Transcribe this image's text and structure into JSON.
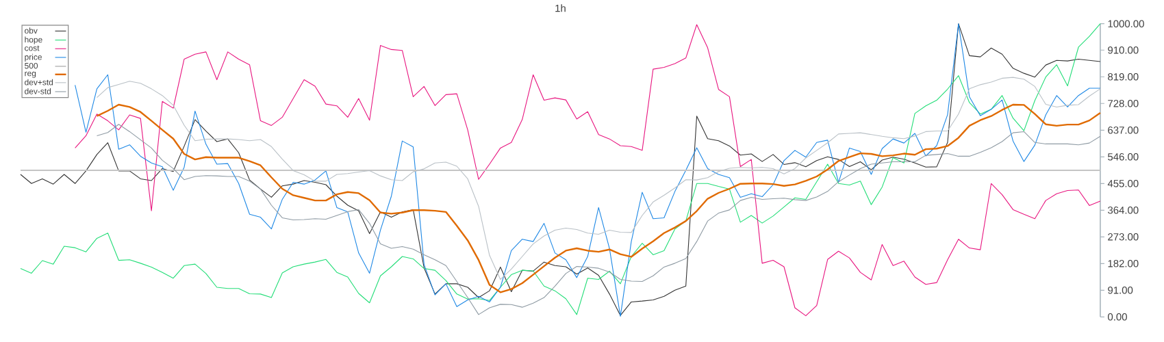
{
  "chart_data": {
    "type": "line",
    "title": "1h",
    "categories": [
      null,
      null,
      null,
      null,
      null,
      null,
      null,
      null,
      null,
      null,
      null,
      null,
      null,
      null,
      null,
      null,
      null,
      null,
      null,
      null,
      null,
      null,
      null,
      null,
      null,
      null,
      null,
      null,
      null,
      null,
      null,
      null,
      null,
      null,
      null,
      null,
      null,
      null,
      null,
      null,
      null,
      null,
      null,
      null,
      null,
      null,
      null,
      null,
      null,
      null,
      null,
      null,
      null,
      null,
      null,
      null,
      null,
      null,
      null,
      null,
      null,
      null,
      null,
      null,
      null,
      null,
      null,
      null,
      null,
      null,
      null,
      null,
      null,
      null,
      null,
      null,
      null,
      null,
      null,
      null,
      null,
      null,
      null,
      null,
      null,
      null,
      null,
      null,
      null,
      null,
      null,
      null,
      null,
      null,
      null,
      null,
      null,
      null,
      null,
      null
    ],
    "series": [
      {
        "name": "obv",
        "color": "#333333",
        "values": [
          486,
          455,
          471,
          453,
          486,
          455,
          498,
          554,
          594,
          498,
          498,
          471,
          465,
          506,
          496,
          582,
          673,
          634,
          598,
          607,
          560,
          467,
          436,
          408,
          447,
          453,
          465,
          459,
          451,
          412,
          381,
          362,
          284,
          358,
          340,
          358,
          366,
          167,
          78,
          113,
          113,
          101,
          66,
          89,
          170,
          86,
          159,
          156,
          187,
          175,
          171,
          146,
          167,
          142,
          78,
          5,
          51,
          54,
          58,
          70,
          91,
          105,
          685,
          608,
          601,
          583,
          552,
          556,
          530,
          554,
          520,
          526,
          512,
          533,
          546,
          537,
          513,
          529,
          502,
          535,
          545,
          538,
          525,
          511,
          512,
          595,
          1000,
          891,
          887,
          917,
          896,
          848,
          831,
          818,
          859,
          875,
          873,
          879,
          875,
          871
        ]
      },
      {
        "name": "hope",
        "color": "#22dd77",
        "values": [
          165,
          149,
          192,
          180,
          241,
          236,
          222,
          268,
          286,
          193,
          195,
          183,
          170,
          152,
          132,
          175,
          180,
          148,
          101,
          97,
          97,
          79,
          78,
          66,
          150,
          171,
          180,
          187,
          196,
          152,
          136,
          80,
          48,
          140,
          171,
          206,
          198,
          165,
          159,
          124,
          78,
          61,
          62,
          56,
          101,
          144,
          159,
          157,
          105,
          89,
          62,
          8,
          132,
          128,
          156,
          113,
          206,
          251,
          212,
          226,
          300,
          327,
          455,
          455,
          445,
          436,
          323,
          346,
          320,
          344,
          375,
          406,
          401,
          461,
          521,
          455,
          450,
          463,
          383,
          443,
          543,
          525,
          694,
          720,
          739,
          777,
          823,
          731,
          692,
          708,
          755,
          678,
          635,
          738,
          818,
          860,
          788,
          920,
          957,
          1000
        ]
      },
      {
        "name": "cost",
        "color": "#e8157f",
        "values": [
          null,
          null,
          null,
          null,
          null,
          576,
          618,
          692,
          669,
          638,
          689,
          677,
          362,
          735,
          712,
          879,
          896,
          904,
          809,
          904,
          879,
          860,
          669,
          653,
          681,
          745,
          809,
          787,
          726,
          720,
          681,
          745,
          671,
          926,
          912,
          909,
          751,
          786,
          721,
          758,
          761,
          638,
          469,
          521,
          576,
          595,
          673,
          826,
          739,
          747,
          740,
          675,
          700,
          622,
          607,
          584,
          581,
          568,
          845,
          851,
          864,
          883,
          997,
          918,
          776,
          751,
          513,
          537,
          183,
          193,
          171,
          31,
          4,
          39,
          196,
          224,
          201,
          152,
          126,
          247,
          175,
          190,
          136,
          111,
          117,
          195,
          265,
          235,
          229,
          455,
          417,
          366,
          350,
          335,
          397,
          420,
          431,
          433,
          380,
          395
        ]
      },
      {
        "name": "price",
        "color": "#1e88e5",
        "values": [
          null,
          null,
          null,
          null,
          null,
          791,
          630,
          778,
          826,
          572,
          587,
          548,
          525,
          512,
          432,
          510,
          702,
          589,
          521,
          523,
          455,
          350,
          340,
          300,
          401,
          459,
          453,
          467,
          498,
          373,
          358,
          218,
          149,
          296,
          412,
          600,
          580,
          179,
          75,
          113,
          35,
          58,
          70,
          51,
          101,
          226,
          265,
          257,
          319,
          218,
          195,
          134,
          206,
          373,
          233,
          2,
          257,
          425,
          335,
          338,
          428,
          500,
          577,
          506,
          486,
          475,
          408,
          420,
          410,
          451,
          533,
          568,
          545,
          595,
          603,
          459,
          576,
          564,
          486,
          574,
          607,
          593,
          626,
          549,
          584,
          690,
          1000,
          751,
          686,
          708,
          740,
          600,
          530,
          586,
          689,
          755,
          716,
          755,
          780,
          780
        ]
      },
      {
        "name": "500",
        "color": "#c4c4c4",
        "values": [
          500,
          500,
          500,
          500,
          500,
          500,
          500,
          500,
          500,
          500,
          500,
          500,
          500,
          500,
          500,
          500,
          500,
          500,
          500,
          500,
          500,
          500,
          500,
          500,
          500,
          500,
          500,
          500,
          500,
          500,
          500,
          500,
          500,
          500,
          500,
          500,
          500,
          500,
          500,
          500,
          500,
          500,
          500,
          500,
          500,
          500,
          500,
          500,
          500,
          500,
          500,
          500,
          500,
          500,
          500,
          500,
          500,
          500,
          500,
          500,
          500,
          500,
          500,
          500,
          500,
          500,
          500,
          500,
          500,
          500,
          500,
          500,
          500,
          500,
          500,
          500,
          500,
          500,
          500,
          500,
          500,
          500,
          500,
          500,
          500,
          500,
          500,
          500,
          500,
          500,
          500,
          500,
          500,
          500,
          500,
          500,
          500,
          500,
          500,
          500
        ]
      },
      {
        "name": "reg",
        "color": "#e06a00",
        "values": [
          null,
          null,
          null,
          null,
          null,
          null,
          null,
          685,
          703,
          724,
          716,
          699,
          669,
          638,
          608,
          556,
          537,
          545,
          543,
          543,
          543,
          531,
          517,
          476,
          437,
          415,
          406,
          397,
          397,
          418,
          426,
          422,
          398,
          356,
          352,
          356,
          364,
          364,
          362,
          358,
          311,
          261,
          194,
          109,
          84,
          95,
          115,
          144,
          173,
          202,
          226,
          234,
          226,
          222,
          230,
          214,
          205,
          233,
          258,
          286,
          305,
          327,
          361,
          403,
          423,
          437,
          454,
          455,
          455,
          453,
          447,
          452,
          464,
          479,
          503,
          532,
          545,
          558,
          556,
          548,
          551,
          557,
          553,
          572,
          574,
          583,
          611,
          652,
          671,
          685,
          706,
          724,
          723,
          692,
          657,
          652,
          656,
          656,
          670,
          696
        ]
      },
      {
        "name": "dev+std",
        "color": "#b9c0c6",
        "values": [
          null,
          null,
          null,
          null,
          null,
          null,
          null,
          748,
          782,
          793,
          804,
          797,
          778,
          755,
          722,
          654,
          601,
          606,
          607,
          607,
          605,
          601,
          605,
          581,
          538,
          499,
          485,
          463,
          463,
          486,
          489,
          494,
          499,
          481,
          468,
          465,
          495,
          505,
          525,
          528,
          514,
          471,
          377,
          210,
          128,
          163,
          206,
          249,
          276,
          296,
          303,
          298,
          286,
          282,
          296,
          289,
          288,
          346,
          392,
          415,
          440,
          468,
          467,
          475,
          496,
          507,
          510,
          508,
          510,
          506,
          488,
          506,
          542,
          568,
          594,
          624,
          626,
          628,
          622,
          616,
          611,
          608,
          617,
          632,
          634,
          634,
          692,
          778,
          792,
          801,
          814,
          817,
          811,
          786,
          725,
          716,
          722,
          724,
          753,
          778
        ]
      },
      {
        "name": "dev-std",
        "color": "#8e9aa3",
        "values": [
          null,
          null,
          null,
          null,
          null,
          null,
          null,
          618,
          629,
          657,
          632,
          604,
          576,
          534,
          506,
          468,
          479,
          482,
          481,
          479,
          479,
          463,
          436,
          381,
          338,
          331,
          332,
          335,
          333,
          346,
          359,
          366,
          319,
          249,
          234,
          240,
          231,
          212,
          195,
          175,
          121,
          66,
          8,
          31,
          43,
          42,
          33,
          47,
          66,
          105,
          148,
          172,
          170,
          166,
          153,
          128,
          122,
          121,
          140,
          170,
          183,
          199,
          257,
          327,
          354,
          365,
          397,
          408,
          401,
          403,
          405,
          400,
          397,
          409,
          428,
          461,
          484,
          506,
          521,
          525,
          529,
          529,
          529,
          551,
          554,
          557,
          548,
          548,
          561,
          577,
          598,
          628,
          632,
          595,
          590,
          590,
          590,
          587,
          593,
          616
        ]
      }
    ],
    "ylim": [
      0,
      1000
    ],
    "yticks": [
      {
        "value": 0,
        "label": "0.00"
      },
      {
        "value": 91,
        "label": "91.00"
      },
      {
        "value": 182,
        "label": "182.00"
      },
      {
        "value": 273,
        "label": "273.00"
      },
      {
        "value": 364,
        "label": "364.00"
      },
      {
        "value": 455,
        "label": "455.00"
      },
      {
        "value": 546,
        "label": "546.00"
      },
      {
        "value": 637,
        "label": "637.00"
      },
      {
        "value": 728,
        "label": "728.00"
      },
      {
        "value": 819,
        "label": "819.00"
      },
      {
        "value": 910,
        "label": "910.00"
      },
      {
        "value": 1000,
        "label": "1000.00"
      }
    ],
    "legend": "top left",
    "tick_labels": "y"
  }
}
